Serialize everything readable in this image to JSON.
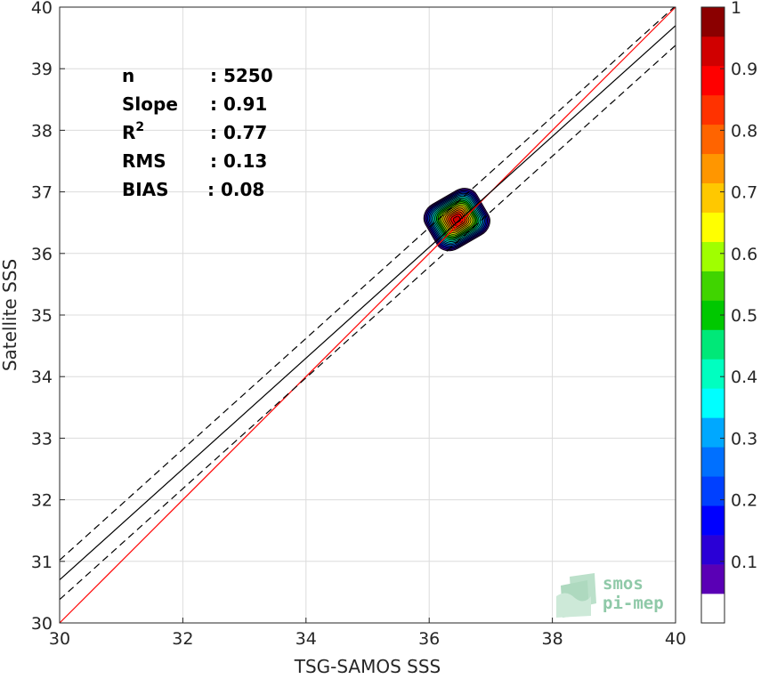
{
  "chart_data": {
    "type": "scatter",
    "subtype": "density-contour",
    "xlabel": "TSG-SAMOS SSS",
    "ylabel": "Satellite SSS",
    "xlim": [
      30,
      40
    ],
    "ylim": [
      30,
      40
    ],
    "x_ticks": [
      "30",
      "32",
      "34",
      "36",
      "38",
      "40"
    ],
    "y_ticks": [
      "30",
      "31",
      "32",
      "33",
      "34",
      "35",
      "36",
      "37",
      "38",
      "39",
      "40"
    ],
    "grid": true,
    "stats": [
      {
        "label": "n",
        "value": ": 5250"
      },
      {
        "label": "Slope",
        "value": ": 0.91"
      },
      {
        "label": "R",
        "sup": "2",
        "value": ": 0.77"
      },
      {
        "label": "RMS",
        "value": ": 0.13"
      },
      {
        "label": "BIAS",
        "value": ": 0.08"
      }
    ],
    "lines": {
      "identity": {
        "slope": 1.0,
        "intercept": 0.0,
        "color": "#ff0000"
      },
      "fit": {
        "slope": 0.9,
        "intercept": 3.7,
        "color": "#000000"
      },
      "fit_upper": {
        "slope": 0.9,
        "intercept": 4.02,
        "color": "#000000",
        "dashed": true
      },
      "fit_lower": {
        "slope": 0.9,
        "intercept": 3.38,
        "color": "#000000",
        "dashed": true
      }
    },
    "density": {
      "center": [
        36.45,
        36.55
      ],
      "rx_max": 0.5,
      "ry_max": 0.43,
      "rotation_deg": -30,
      "levels": [
        0.05,
        0.1,
        0.15,
        0.2,
        0.25,
        0.3,
        0.35,
        0.4,
        0.45,
        0.5,
        0.55,
        0.6,
        0.65,
        0.7,
        0.75,
        0.8,
        0.85,
        0.9,
        0.95
      ]
    },
    "colorbar": {
      "range": [
        0,
        1
      ],
      "ticks": [
        "0.1",
        "0.2",
        "0.3",
        "0.4",
        "0.5",
        "0.6",
        "0.7",
        "0.8",
        "0.9",
        "1"
      ],
      "colors": [
        "#ffffff",
        "#5a00b5",
        "#2a00d6",
        "#0000ff",
        "#0040ff",
        "#0070ff",
        "#00a8ff",
        "#00ffff",
        "#00ffc0",
        "#00e878",
        "#00c800",
        "#40d400",
        "#a0ff00",
        "#ffff00",
        "#ffc800",
        "#ff9600",
        "#ff6400",
        "#ff3200",
        "#ff0000",
        "#d00000",
        "#8b0000"
      ]
    }
  },
  "watermark": {
    "line1": "smos",
    "line2": "pi-mep"
  }
}
